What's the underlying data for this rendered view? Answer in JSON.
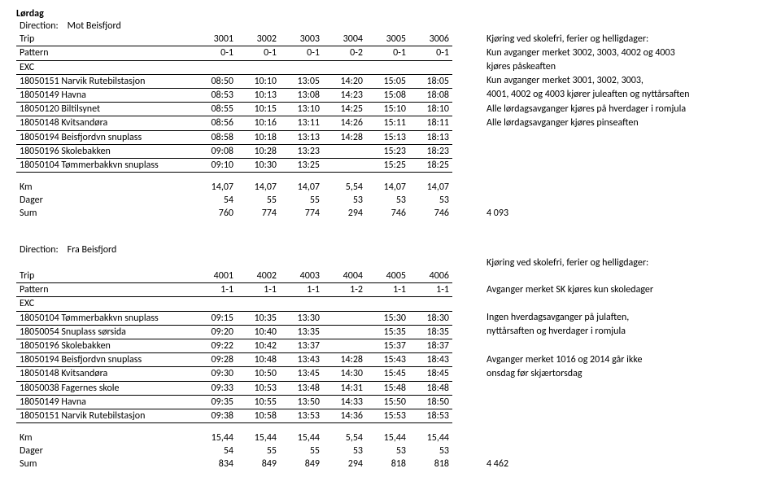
{
  "day": "Lørdag",
  "direction_label": "Direction:",
  "directions": {
    "out": {
      "name": "Mot Beisfjord",
      "trip_label": "Trip",
      "pattern_label": "Pattern",
      "exc_label": "EXC",
      "trips": [
        "3001",
        "3002",
        "3003",
        "3004",
        "3005",
        "3006"
      ],
      "patterns": [
        "0-1",
        "0-1",
        "0-1",
        "0-2",
        "0-1",
        "0-1"
      ],
      "stops": [
        {
          "id": "18050151",
          "name": "Narvik Rutebilstasjon",
          "t": [
            "08:50",
            "10:10",
            "13:05",
            "14:20",
            "15:05",
            "18:05"
          ]
        },
        {
          "id": "18050149",
          "name": "Havna",
          "t": [
            "08:53",
            "10:13",
            "13:08",
            "14:23",
            "15:08",
            "18:08"
          ]
        },
        {
          "id": "18050120",
          "name": "Biltilsynet",
          "t": [
            "08:55",
            "10:15",
            "13:10",
            "14:25",
            "15:10",
            "18:10"
          ]
        },
        {
          "id": "18050148",
          "name": "Kvitsandøra",
          "t": [
            "08:56",
            "10:16",
            "13:11",
            "14:26",
            "15:11",
            "18:11"
          ]
        },
        {
          "id": "18050194",
          "name": "Beisfjordvn snuplass",
          "t": [
            "08:58",
            "10:18",
            "13:13",
            "14:28",
            "15:13",
            "18:13"
          ]
        },
        {
          "id": "18050196",
          "name": "Skolebakken",
          "t": [
            "09:08",
            "10:28",
            "13:23",
            "",
            "15:23",
            "18:23"
          ]
        },
        {
          "id": "18050104",
          "name": "Tømmerbakkvn snuplass",
          "t": [
            "09:10",
            "10:30",
            "13:25",
            "",
            "15:25",
            "18:25"
          ]
        }
      ],
      "km_label": "Km",
      "km": [
        "14,07",
        "14,07",
        "14,07",
        "5,54",
        "14,07",
        "14,07"
      ],
      "dager_label": "Dager",
      "dager": [
        "54",
        "55",
        "55",
        "53",
        "53",
        "53"
      ],
      "sum_label": "Sum",
      "sum": [
        "760",
        "774",
        "774",
        "294",
        "746",
        "746"
      ],
      "sum_total": "4 093",
      "notes": [
        "Kjøring ved skolefri, ferier og helligdager:",
        "Kun avganger merket 3002, 3003, 4002 og 4003",
        "kjøres påskeaften",
        "Kun avganger merket 3001, 3002, 3003,",
        "4001, 4002 og 4003 kjører juleaften og nyttårsaften",
        "Alle lørdagsavganger kjøres på hverdager i romjula",
        "Alle lørdagsavganger kjøres pinseaften"
      ]
    },
    "in": {
      "name": "Fra Beisfjord",
      "trip_label": "Trip",
      "pattern_label": "Pattern",
      "exc_label": "EXC",
      "trips": [
        "4001",
        "4002",
        "4003",
        "4004",
        "4005",
        "4006"
      ],
      "patterns": [
        "1-1",
        "1-1",
        "1-1",
        "1-2",
        "1-1",
        "1-1"
      ],
      "stops": [
        {
          "id": "18050104",
          "name": "Tømmerbakkvn snuplass",
          "t": [
            "09:15",
            "10:35",
            "13:30",
            "",
            "15:30",
            "18:30"
          ]
        },
        {
          "id": "18050054",
          "name": "Snuplass sørsida",
          "t": [
            "09:20",
            "10:40",
            "13:35",
            "",
            "15:35",
            "18:35"
          ]
        },
        {
          "id": "18050196",
          "name": "Skolebakken",
          "t": [
            "09:22",
            "10:42",
            "13:37",
            "",
            "15:37",
            "18:37"
          ]
        },
        {
          "id": "18050194",
          "name": "Beisfjordvn snuplass",
          "t": [
            "09:28",
            "10:48",
            "13:43",
            "14:28",
            "15:43",
            "18:43"
          ]
        },
        {
          "id": "18050148",
          "name": "Kvitsandøra",
          "t": [
            "09:30",
            "10:50",
            "13:45",
            "14:30",
            "15:45",
            "18:45"
          ]
        },
        {
          "id": "18050038",
          "name": "Fagernes skole",
          "t": [
            "09:33",
            "10:53",
            "13:48",
            "14:31",
            "15:48",
            "18:48"
          ]
        },
        {
          "id": "18050149",
          "name": "Havna",
          "t": [
            "09:35",
            "10:55",
            "13:50",
            "14:33",
            "15:50",
            "18:50"
          ]
        },
        {
          "id": "18050151",
          "name": "Narvik Rutebilstasjon",
          "t": [
            "09:38",
            "10:58",
            "13:53",
            "14:36",
            "15:53",
            "18:53"
          ]
        }
      ],
      "km_label": "Km",
      "km": [
        "15,44",
        "15,44",
        "15,44",
        "5,54",
        "15,44",
        "15,44"
      ],
      "dager_label": "Dager",
      "dager": [
        "54",
        "55",
        "55",
        "53",
        "53",
        "53"
      ],
      "sum_label": "Sum",
      "sum": [
        "834",
        "849",
        "849",
        "294",
        "818",
        "818"
      ],
      "sum_total": "4 462",
      "notes": [
        "Kjøring ved skolefri, ferier og helligdager:",
        "",
        "Avganger merket SK kjøres kun skoledager",
        "",
        "Ingen hverdagsavganger på julaften,",
        "nyttårsaften og hverdager i romjula",
        "",
        "Avganger merket 1016 og 2014 går ikke",
        "onsdag før skjærtorsdag"
      ]
    }
  }
}
